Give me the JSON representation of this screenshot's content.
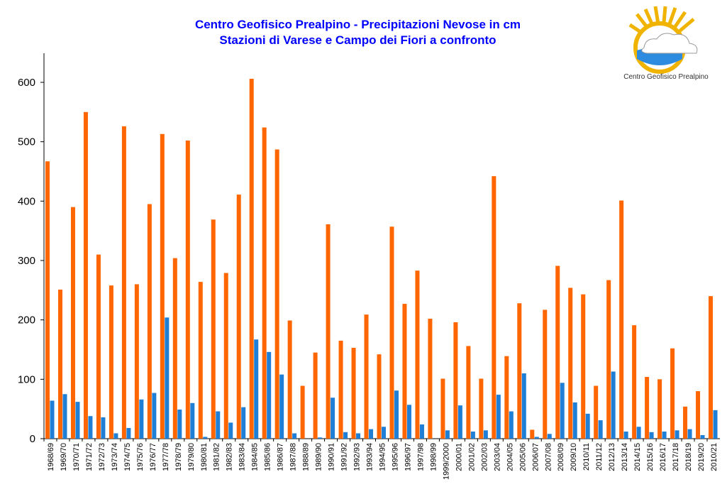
{
  "title_line1": "Centro Geofisico Prealpino - Precipitazioni Nevose in cm",
  "title_line2": "Stazioni di Varese e Campo dei Fiori a confronto",
  "logo_text": "Centro Geofisico Prealpino",
  "colors": {
    "series1": "#ff6600",
    "series2": "#1f7fd6",
    "title": "#0000ff"
  },
  "chart_data": {
    "type": "bar",
    "ylim": [
      0,
      650
    ],
    "yticks": [
      0,
      100,
      200,
      300,
      400,
      500,
      600
    ],
    "grid": false,
    "legend": "none",
    "categories": [
      "1968/69",
      "1969/70",
      "1970/71",
      "1971/72",
      "1972/73",
      "1973/74",
      "1974/75",
      "1975/76",
      "1976/77",
      "1977/78",
      "1978/79",
      "1979/80",
      "1980/81",
      "1981/82",
      "1982/83",
      "1983/84",
      "1984/85",
      "1985/86",
      "1986/87",
      "1987/88",
      "1988/89",
      "1989/90",
      "1990/91",
      "1991/92",
      "1992/93",
      "1993/94",
      "1994/95",
      "1995/96",
      "1996/97",
      "1997/98",
      "1998/99",
      "1999/2000",
      "2000/01",
      "2001/02",
      "2002/03",
      "2003/04",
      "2004/05",
      "2005/06",
      "2006/07",
      "2007/08",
      "2008/09",
      "2009/10",
      "2010/11",
      "2011/12",
      "2012/13",
      "2013/14",
      "2014/15",
      "2015/16",
      "2016/17",
      "2017/18",
      "2018/19",
      "2019/20",
      "2010/21"
    ],
    "series": [
      {
        "values": [
          467,
          251,
          390,
          550,
          310,
          258,
          526,
          260,
          395,
          513,
          304,
          502,
          264,
          369,
          279,
          411,
          606,
          524,
          487,
          199,
          89,
          145,
          361,
          165,
          153,
          209,
          142,
          357,
          227,
          283,
          202,
          101,
          196,
          156,
          101,
          442,
          139,
          228,
          15,
          217,
          291,
          254,
          243,
          89,
          267,
          401,
          191,
          104,
          100,
          152,
          54,
          80,
          240
        ]
      },
      {
        "values": [
          64,
          75,
          62,
          38,
          36,
          9,
          18,
          66,
          77,
          204,
          49,
          60,
          3,
          46,
          27,
          53,
          167,
          146,
          108,
          9,
          0,
          2,
          69,
          11,
          9,
          16,
          20,
          81,
          57,
          24,
          0,
          14,
          56,
          12,
          14,
          74,
          46,
          110,
          3,
          8,
          94,
          61,
          42,
          31,
          113,
          12,
          20,
          11,
          12,
          14,
          16,
          6,
          48
        ]
      }
    ]
  }
}
